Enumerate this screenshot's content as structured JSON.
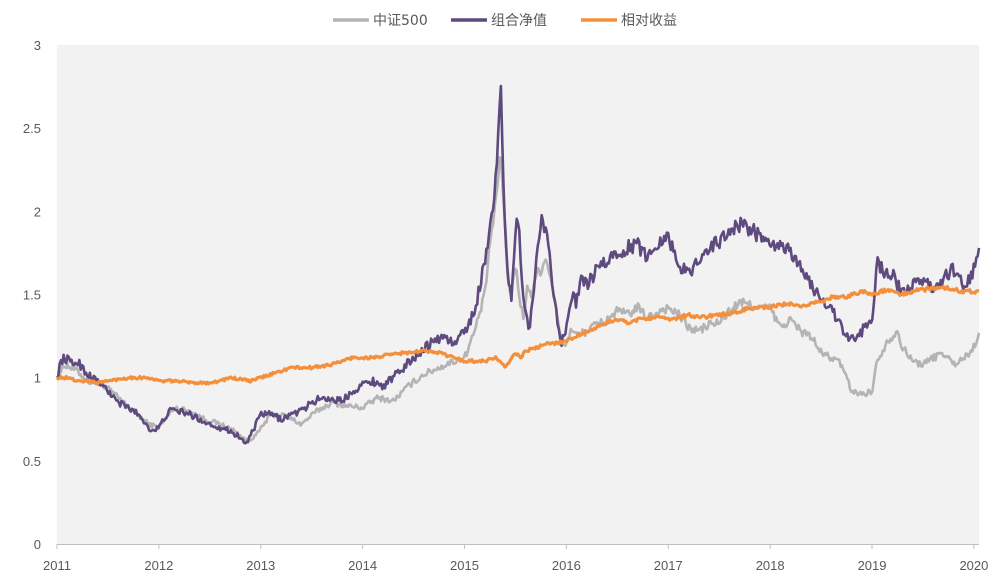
{
  "chart_data": {
    "type": "line",
    "title": "",
    "xlabel": "",
    "ylabel": "",
    "xlim": [
      2011,
      2020.05
    ],
    "ylim": [
      0,
      3
    ],
    "x_ticks": [
      "2011",
      "2012",
      "2013",
      "2014",
      "2015",
      "2016",
      "2017",
      "2018",
      "2019",
      "2020"
    ],
    "y_ticks": [
      "0",
      "0.5",
      "1",
      "1.5",
      "2",
      "2.5",
      "3"
    ],
    "legend_position": "top-center",
    "plot_background": "#f2f2f2",
    "series": [
      {
        "name": "中证500",
        "color": "#b4b4b4",
        "x": [
          2011.0,
          2011.08,
          2011.2,
          2011.3,
          2011.45,
          2011.6,
          2011.75,
          2011.9,
          2012.0,
          2012.15,
          2012.3,
          2012.45,
          2012.6,
          2012.75,
          2012.85,
          2012.95,
          2013.1,
          2013.25,
          2013.4,
          2013.55,
          2013.7,
          2013.85,
          2014.0,
          2014.15,
          2014.3,
          2014.45,
          2014.6,
          2014.75,
          2014.9,
          2015.0,
          2015.1,
          2015.2,
          2015.25,
          2015.3,
          2015.35,
          2015.4,
          2015.42,
          2015.46,
          2015.5,
          2015.55,
          2015.58,
          2015.62,
          2015.66,
          2015.7,
          2015.75,
          2015.8,
          2015.85,
          2015.9,
          2015.95,
          2016.0,
          2016.05,
          2016.1,
          2016.2,
          2016.3,
          2016.4,
          2016.5,
          2016.6,
          2016.7,
          2016.8,
          2016.9,
          2017.0,
          2017.1,
          2017.2,
          2017.3,
          2017.4,
          2017.5,
          2017.6,
          2017.7,
          2017.8,
          2017.9,
          2018.0,
          2018.1,
          2018.2,
          2018.3,
          2018.4,
          2018.5,
          2018.6,
          2018.7,
          2018.75,
          2018.8,
          2018.9,
          2019.0,
          2019.05,
          2019.15,
          2019.25,
          2019.3,
          2019.4,
          2019.5,
          2019.6,
          2019.7,
          2019.8,
          2019.9,
          2019.97,
          2020.02,
          2020.05
        ],
        "values": [
          1.0,
          1.08,
          1.04,
          0.98,
          0.96,
          0.88,
          0.8,
          0.72,
          0.7,
          0.82,
          0.8,
          0.75,
          0.72,
          0.68,
          0.62,
          0.65,
          0.78,
          0.77,
          0.72,
          0.8,
          0.85,
          0.83,
          0.82,
          0.88,
          0.86,
          0.95,
          1.02,
          1.06,
          1.1,
          1.12,
          1.28,
          1.5,
          1.82,
          2.0,
          2.36,
          1.92,
          1.62,
          1.5,
          1.68,
          1.45,
          1.35,
          1.55,
          1.5,
          1.62,
          1.65,
          1.72,
          1.6,
          1.4,
          1.22,
          1.2,
          1.3,
          1.25,
          1.28,
          1.32,
          1.35,
          1.4,
          1.38,
          1.42,
          1.36,
          1.4,
          1.42,
          1.38,
          1.3,
          1.28,
          1.32,
          1.33,
          1.4,
          1.45,
          1.44,
          1.42,
          1.42,
          1.3,
          1.35,
          1.28,
          1.25,
          1.15,
          1.12,
          1.08,
          1.0,
          0.92,
          0.9,
          0.92,
          1.1,
          1.22,
          1.28,
          1.18,
          1.1,
          1.08,
          1.12,
          1.15,
          1.08,
          1.12,
          1.15,
          1.22,
          1.27
        ]
      },
      {
        "name": "组合净值",
        "color": "#5e4a7e",
        "x": [
          2011.0,
          2011.04,
          2011.08,
          2011.15,
          2011.2,
          2011.3,
          2011.4,
          2011.5,
          2011.6,
          2011.7,
          2011.8,
          2011.9,
          2011.95,
          2012.0,
          2012.1,
          2012.2,
          2012.3,
          2012.4,
          2012.5,
          2012.6,
          2012.7,
          2012.8,
          2012.85,
          2012.9,
          2013.0,
          2013.1,
          2013.2,
          2013.3,
          2013.4,
          2013.5,
          2013.6,
          2013.7,
          2013.8,
          2013.9,
          2014.0,
          2014.1,
          2014.2,
          2014.3,
          2014.4,
          2014.5,
          2014.6,
          2014.7,
          2014.8,
          2014.9,
          2015.0,
          2015.1,
          2015.2,
          2015.25,
          2015.3,
          2015.33,
          2015.36,
          2015.38,
          2015.4,
          2015.43,
          2015.46,
          2015.5,
          2015.53,
          2015.56,
          2015.6,
          2015.64,
          2015.68,
          2015.72,
          2015.76,
          2015.8,
          2015.85,
          2015.9,
          2015.95,
          2016.0,
          2016.05,
          2016.1,
          2016.15,
          2016.2,
          2016.3,
          2016.4,
          2016.5,
          2016.6,
          2016.7,
          2016.8,
          2016.9,
          2017.0,
          2017.1,
          2017.2,
          2017.3,
          2017.4,
          2017.5,
          2017.6,
          2017.7,
          2017.8,
          2017.9,
          2018.0,
          2018.1,
          2018.2,
          2018.3,
          2018.4,
          2018.5,
          2018.6,
          2018.7,
          2018.75,
          2018.8,
          2018.9,
          2019.0,
          2019.05,
          2019.1,
          2019.2,
          2019.3,
          2019.4,
          2019.5,
          2019.6,
          2019.7,
          2019.8,
          2019.9,
          2019.97,
          2020.02,
          2020.05
        ],
        "values": [
          1.0,
          1.1,
          1.12,
          1.08,
          1.1,
          1.02,
          0.98,
          0.92,
          0.85,
          0.82,
          0.78,
          0.7,
          0.68,
          0.7,
          0.8,
          0.8,
          0.78,
          0.75,
          0.72,
          0.7,
          0.68,
          0.64,
          0.6,
          0.65,
          0.78,
          0.78,
          0.75,
          0.78,
          0.8,
          0.85,
          0.88,
          0.87,
          0.86,
          0.92,
          0.96,
          0.98,
          0.95,
          1.0,
          1.06,
          1.12,
          1.18,
          1.22,
          1.25,
          1.2,
          1.28,
          1.4,
          1.7,
          1.92,
          2.1,
          2.5,
          2.78,
          2.2,
          1.88,
          1.6,
          1.45,
          1.85,
          2.0,
          1.6,
          1.4,
          1.28,
          1.55,
          1.8,
          1.95,
          1.9,
          1.65,
          1.4,
          1.22,
          1.28,
          1.5,
          1.45,
          1.6,
          1.55,
          1.65,
          1.7,
          1.75,
          1.78,
          1.8,
          1.72,
          1.82,
          1.85,
          1.68,
          1.62,
          1.72,
          1.78,
          1.82,
          1.88,
          1.92,
          1.9,
          1.85,
          1.78,
          1.8,
          1.75,
          1.68,
          1.55,
          1.48,
          1.42,
          1.3,
          1.25,
          1.22,
          1.28,
          1.35,
          1.7,
          1.65,
          1.62,
          1.5,
          1.55,
          1.6,
          1.52,
          1.6,
          1.65,
          1.55,
          1.6,
          1.68,
          1.78
        ]
      },
      {
        "name": "相对收益",
        "color": "#f4903c",
        "x": [
          2011.0,
          2011.1,
          2011.2,
          2011.3,
          2011.4,
          2011.5,
          2011.6,
          2011.7,
          2011.8,
          2011.9,
          2012.0,
          2012.1,
          2012.2,
          2012.3,
          2012.4,
          2012.5,
          2012.6,
          2012.7,
          2012.8,
          2012.9,
          2013.0,
          2013.1,
          2013.2,
          2013.3,
          2013.4,
          2013.5,
          2013.6,
          2013.7,
          2013.8,
          2013.9,
          2014.0,
          2014.1,
          2014.2,
          2014.3,
          2014.4,
          2014.5,
          2014.6,
          2014.7,
          2014.8,
          2014.9,
          2015.0,
          2015.1,
          2015.2,
          2015.3,
          2015.35,
          2015.4,
          2015.45,
          2015.5,
          2015.55,
          2015.6,
          2015.7,
          2015.8,
          2015.9,
          2016.0,
          2016.1,
          2016.2,
          2016.3,
          2016.4,
          2016.5,
          2016.6,
          2016.7,
          2016.8,
          2016.9,
          2017.0,
          2017.1,
          2017.2,
          2017.3,
          2017.4,
          2017.5,
          2017.6,
          2017.7,
          2017.8,
          2017.9,
          2018.0,
          2018.1,
          2018.2,
          2018.3,
          2018.4,
          2018.5,
          2018.6,
          2018.7,
          2018.8,
          2018.9,
          2019.0,
          2019.1,
          2019.2,
          2019.3,
          2019.4,
          2019.5,
          2019.6,
          2019.7,
          2019.8,
          2019.9,
          2020.0,
          2020.05
        ],
        "values": [
          1.0,
          1.0,
          0.98,
          0.98,
          0.97,
          0.98,
          0.99,
          1.0,
          1.0,
          1.0,
          0.98,
          0.98,
          0.98,
          0.97,
          0.97,
          0.97,
          0.98,
          1.0,
          0.99,
          0.98,
          1.0,
          1.02,
          1.04,
          1.06,
          1.06,
          1.06,
          1.07,
          1.08,
          1.1,
          1.12,
          1.12,
          1.12,
          1.13,
          1.14,
          1.15,
          1.15,
          1.16,
          1.16,
          1.14,
          1.12,
          1.1,
          1.1,
          1.1,
          1.12,
          1.1,
          1.06,
          1.1,
          1.15,
          1.12,
          1.16,
          1.18,
          1.2,
          1.21,
          1.22,
          1.25,
          1.28,
          1.3,
          1.33,
          1.35,
          1.33,
          1.35,
          1.36,
          1.36,
          1.35,
          1.36,
          1.38,
          1.36,
          1.37,
          1.38,
          1.38,
          1.4,
          1.42,
          1.42,
          1.42,
          1.44,
          1.44,
          1.42,
          1.45,
          1.46,
          1.48,
          1.48,
          1.5,
          1.52,
          1.5,
          1.52,
          1.52,
          1.5,
          1.52,
          1.53,
          1.54,
          1.54,
          1.53,
          1.52,
          1.52,
          1.52
        ]
      }
    ]
  }
}
